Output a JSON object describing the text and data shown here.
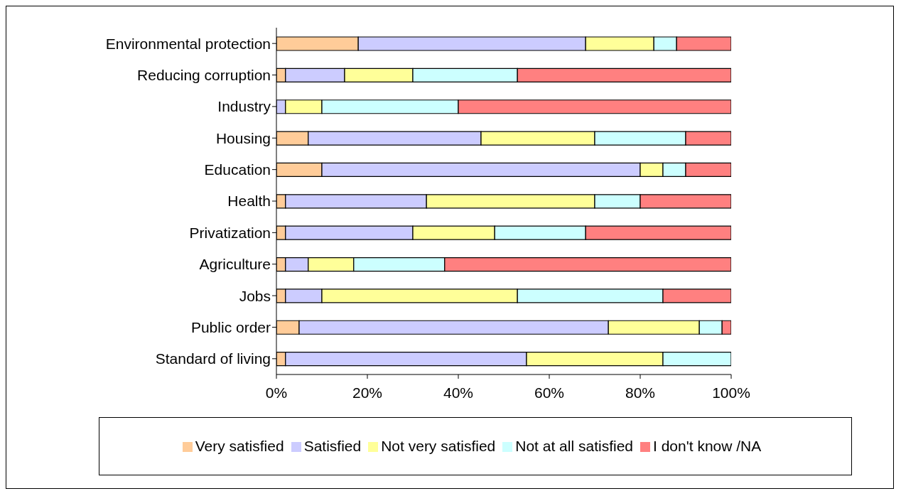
{
  "chart_data": {
    "type": "bar",
    "orientation": "horizontal",
    "stacked": true,
    "categories": [
      "Environmental protection",
      "Reducing corruption",
      "Industry",
      "Housing",
      "Education",
      "Health",
      "Privatization",
      "Agriculture",
      "Jobs",
      "Public order",
      "Standard of living"
    ],
    "series": [
      {
        "name": "Very satisfied",
        "color": "#ffcc99",
        "values": [
          18,
          2,
          0,
          7,
          10,
          2,
          2,
          2,
          2,
          5,
          2
        ]
      },
      {
        "name": "Satisfied",
        "color": "#ccccff",
        "values": [
          50,
          13,
          2,
          38,
          70,
          31,
          28,
          5,
          8,
          68,
          53
        ]
      },
      {
        "name": "Not very satisfied",
        "color": "#ffff99",
        "values": [
          15,
          15,
          8,
          25,
          5,
          37,
          18,
          10,
          43,
          20,
          30
        ]
      },
      {
        "name": "Not at all satisfied",
        "color": "#ccffff",
        "values": [
          5,
          23,
          30,
          20,
          5,
          10,
          20,
          20,
          32,
          5,
          15
        ]
      },
      {
        "name": "I don't know /NA",
        "color": "#ff8080",
        "values": [
          12,
          47,
          60,
          10,
          10,
          20,
          32,
          63,
          15,
          2,
          0
        ]
      }
    ],
    "xlim": [
      0,
      100
    ],
    "xticks": [
      {
        "value": 0,
        "label": "0%"
      },
      {
        "value": 20,
        "label": "20%"
      },
      {
        "value": 40,
        "label": "40%"
      },
      {
        "value": 60,
        "label": "60%"
      },
      {
        "value": 80,
        "label": "80%"
      },
      {
        "value": 100,
        "label": "100%"
      }
    ],
    "grid": false,
    "legend": "bottom"
  }
}
